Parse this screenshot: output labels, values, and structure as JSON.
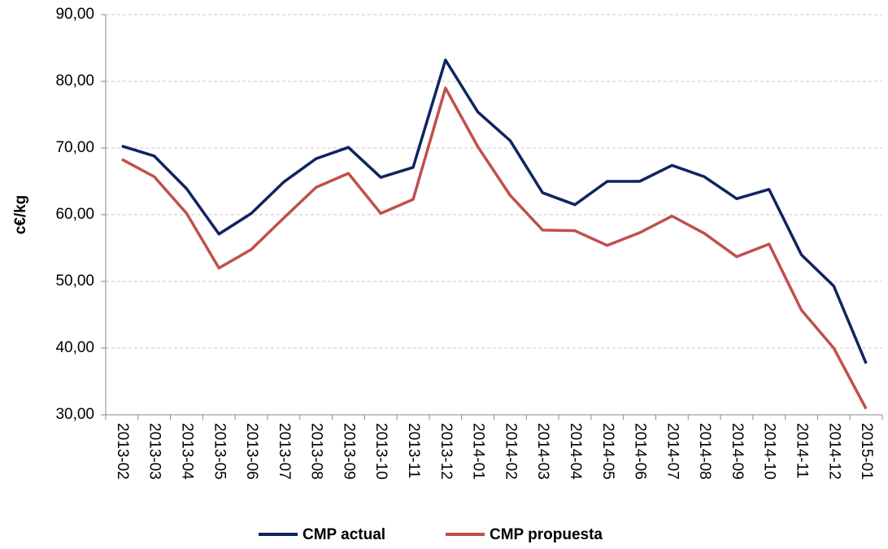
{
  "chart_data": {
    "type": "line",
    "y_label": "c€/kg",
    "categories": [
      "2013-02",
      "2013-03",
      "2013-04",
      "2013-05",
      "2013-06",
      "2013-07",
      "2013-08",
      "2013-09",
      "2013-10",
      "2013-11",
      "2013-12",
      "2014-01",
      "2014-02",
      "2014-03",
      "2014-04",
      "2014-05",
      "2014-06",
      "2014-07",
      "2014-08",
      "2014-09",
      "2014-10",
      "2014-11",
      "2014-12",
      "2015-01"
    ],
    "series": [
      {
        "name": "CMP actual",
        "color": "#0f2461",
        "values": [
          70.3,
          68.8,
          63.9,
          57.1,
          60.2,
          64.9,
          68.4,
          70.1,
          65.6,
          67.1,
          83.2,
          75.4,
          71.1,
          63.3,
          61.5,
          65.0,
          65.0,
          67.4,
          65.7,
          62.4,
          63.8,
          54.0,
          49.3,
          37.7
        ]
      },
      {
        "name": "CMP propuesta",
        "color": "#c0504d",
        "values": [
          68.3,
          65.7,
          60.2,
          52.0,
          54.8,
          59.5,
          64.1,
          66.2,
          60.2,
          62.3,
          79.0,
          70.2,
          62.9,
          57.7,
          57.6,
          55.4,
          57.3,
          59.8,
          57.2,
          53.7,
          55.6,
          45.7,
          40.0,
          30.9
        ]
      }
    ],
    "ylim": [
      30,
      90
    ],
    "yticks": [
      {
        "value": 30,
        "label": "30,00"
      },
      {
        "value": 40,
        "label": "40,00"
      },
      {
        "value": 50,
        "label": "50,00"
      },
      {
        "value": 60,
        "label": "60,00"
      },
      {
        "value": 70,
        "label": "70,00"
      },
      {
        "value": 80,
        "label": "80,00"
      },
      {
        "value": 90,
        "label": "90,00"
      }
    ],
    "grid": true,
    "legend": "bottom"
  }
}
